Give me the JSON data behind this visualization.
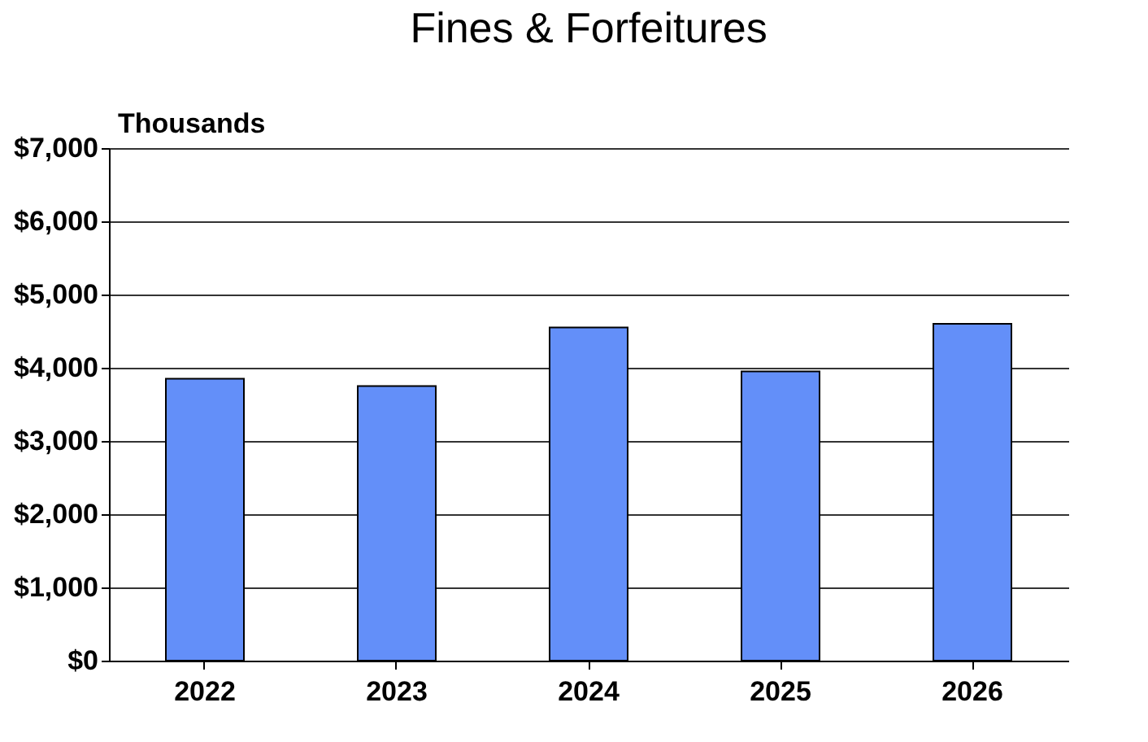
{
  "chart_data": {
    "type": "bar",
    "title": "Fines & Forfeitures",
    "ylabel": "Thousands",
    "categories": [
      "2022",
      "2023",
      "2024",
      "2025",
      "2026"
    ],
    "series": [
      {
        "color": "#638ff9",
        "values": [
          3850,
          3750,
          4550,
          3950,
          4600
        ]
      }
    ],
    "ylim": [
      0,
      7000
    ],
    "yticks": [
      {
        "value": 0,
        "label": "$0"
      },
      {
        "value": 1000,
        "label": "$1,000"
      },
      {
        "value": 2000,
        "label": "$2,000"
      },
      {
        "value": 3000,
        "label": "$3,000"
      },
      {
        "value": 4000,
        "label": "$4,000"
      },
      {
        "value": 5000,
        "label": "$5,000"
      },
      {
        "value": 6000,
        "label": "$6,000"
      },
      {
        "value": 7000,
        "label": "$7,000"
      }
    ],
    "grid": "y"
  }
}
